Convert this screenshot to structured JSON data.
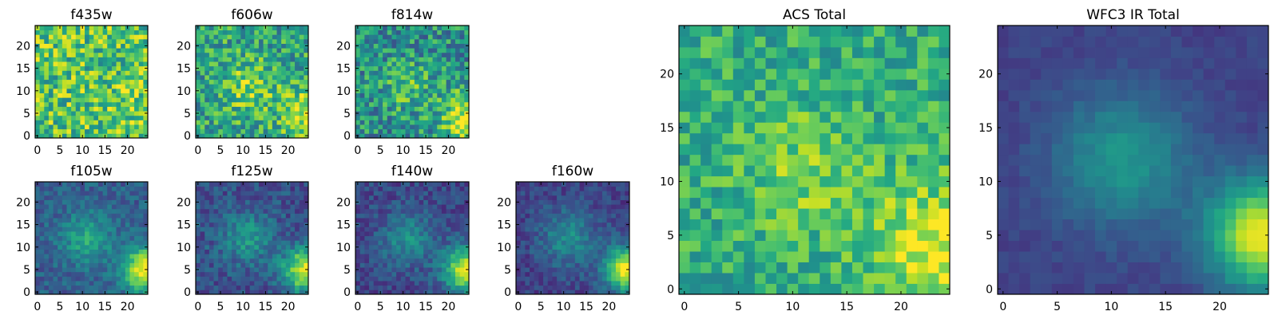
{
  "chart_data": [
    {
      "type": "heatmap",
      "title": "f435w",
      "xlabel": "",
      "ylabel": "",
      "xlim": [
        -0.5,
        24.5
      ],
      "ylim": [
        -0.5,
        24.5
      ],
      "xticks": [
        0,
        5,
        10,
        15,
        20
      ],
      "yticks": [
        0,
        5,
        10,
        15,
        20
      ],
      "colormap": "viridis",
      "shape": [
        25,
        25
      ],
      "pattern": {
        "noise": 0.55,
        "base": 0.72,
        "blob": [
          11,
          11,
          0.0,
          5
        ],
        "corner": [
          24,
          5,
          0.1,
          4
        ],
        "seed": 11
      }
    },
    {
      "type": "heatmap",
      "title": "f606w",
      "xlabel": "",
      "ylabel": "",
      "xlim": [
        -0.5,
        24.5
      ],
      "ylim": [
        -0.5,
        24.5
      ],
      "xticks": [
        0,
        5,
        10,
        15,
        20
      ],
      "yticks": [
        0,
        5,
        10,
        15,
        20
      ],
      "colormap": "viridis",
      "shape": [
        25,
        25
      ],
      "pattern": {
        "noise": 0.5,
        "base": 0.58,
        "blob": [
          11,
          11,
          0.25,
          4
        ],
        "corner": [
          24,
          5,
          0.35,
          4
        ],
        "seed": 23
      }
    },
    {
      "type": "heatmap",
      "title": "f814w",
      "xlabel": "",
      "ylabel": "",
      "xlim": [
        -0.5,
        24.5
      ],
      "ylim": [
        -0.5,
        24.5
      ],
      "xticks": [
        0,
        5,
        10,
        15,
        20
      ],
      "yticks": [
        0,
        5,
        10,
        15,
        20
      ],
      "colormap": "viridis",
      "shape": [
        25,
        25
      ],
      "pattern": {
        "noise": 0.5,
        "base": 0.5,
        "blob": [
          11,
          11,
          0.2,
          4
        ],
        "corner": [
          24,
          4,
          0.45,
          4
        ],
        "seed": 37
      }
    },
    {
      "type": "heatmap",
      "title": "f105w",
      "xlabel": "",
      "ylabel": "",
      "xlim": [
        -0.5,
        24.5
      ],
      "ylim": [
        -0.5,
        24.5
      ],
      "xticks": [
        0,
        5,
        10,
        15,
        20
      ],
      "yticks": [
        0,
        5,
        10,
        15,
        20
      ],
      "colormap": "viridis",
      "shape": [
        25,
        25
      ],
      "pattern": {
        "noise": 0.22,
        "base": 0.3,
        "blob": [
          11,
          12,
          0.3,
          4
        ],
        "corner": [
          24,
          5,
          0.7,
          3.5
        ],
        "seed": 41
      }
    },
    {
      "type": "heatmap",
      "title": "f125w",
      "xlabel": "",
      "ylabel": "",
      "xlim": [
        -0.5,
        24.5
      ],
      "ylim": [
        -0.5,
        24.5
      ],
      "xticks": [
        0,
        5,
        10,
        15,
        20
      ],
      "yticks": [
        0,
        5,
        10,
        15,
        20
      ],
      "colormap": "viridis",
      "shape": [
        25,
        25
      ],
      "pattern": {
        "noise": 0.25,
        "base": 0.25,
        "blob": [
          11,
          12,
          0.28,
          4
        ],
        "corner": [
          24,
          5,
          0.72,
          3.5
        ],
        "seed": 53
      }
    },
    {
      "type": "heatmap",
      "title": "f140w",
      "xlabel": "",
      "ylabel": "",
      "xlim": [
        -0.5,
        24.5
      ],
      "ylim": [
        -0.5,
        24.5
      ],
      "xticks": [
        0,
        5,
        10,
        15,
        20
      ],
      "yticks": [
        0,
        5,
        10,
        15,
        20
      ],
      "colormap": "viridis",
      "shape": [
        25,
        25
      ],
      "pattern": {
        "noise": 0.22,
        "base": 0.22,
        "blob": [
          11,
          12,
          0.28,
          4
        ],
        "corner": [
          24,
          5,
          0.75,
          3.5
        ],
        "seed": 67
      }
    },
    {
      "type": "heatmap",
      "title": "f160w",
      "xlabel": "",
      "ylabel": "",
      "xlim": [
        -0.5,
        24.5
      ],
      "ylim": [
        -0.5,
        24.5
      ],
      "xticks": [
        0,
        5,
        10,
        15,
        20
      ],
      "yticks": [
        0,
        5,
        10,
        15,
        20
      ],
      "colormap": "viridis",
      "shape": [
        25,
        25
      ],
      "pattern": {
        "noise": 0.2,
        "base": 0.2,
        "blob": [
          11,
          12,
          0.28,
          4.5
        ],
        "corner": [
          24,
          5,
          0.78,
          3.5
        ],
        "seed": 79
      }
    },
    {
      "type": "heatmap",
      "title": "ACS Total",
      "xlabel": "",
      "ylabel": "",
      "xlim": [
        -0.5,
        24.5
      ],
      "ylim": [
        -0.5,
        24.5
      ],
      "xticks": [
        0,
        5,
        10,
        15,
        20
      ],
      "yticks": [
        0,
        5,
        10,
        15,
        20
      ],
      "colormap": "viridis",
      "shape": [
        25,
        25
      ],
      "pattern": {
        "noise": 0.35,
        "base": 0.62,
        "blob": [
          11,
          11,
          0.18,
          4
        ],
        "corner": [
          23,
          4,
          0.35,
          4
        ],
        "seed": 97
      }
    },
    {
      "type": "heatmap",
      "title": "WFC3 IR Total",
      "xlabel": "",
      "ylabel": "",
      "xlim": [
        -0.5,
        24.5
      ],
      "ylim": [
        -0.5,
        24.5
      ],
      "xticks": [
        0,
        5,
        10,
        15,
        20
      ],
      "yticks": [
        0,
        5,
        10,
        15,
        20
      ],
      "colormap": "viridis",
      "shape": [
        25,
        25
      ],
      "pattern": {
        "noise": 0.08,
        "base": 0.2,
        "blob": [
          11,
          12,
          0.32,
          4.5
        ],
        "corner": [
          24,
          5,
          0.78,
          3.5
        ],
        "seed": 113
      }
    }
  ]
}
